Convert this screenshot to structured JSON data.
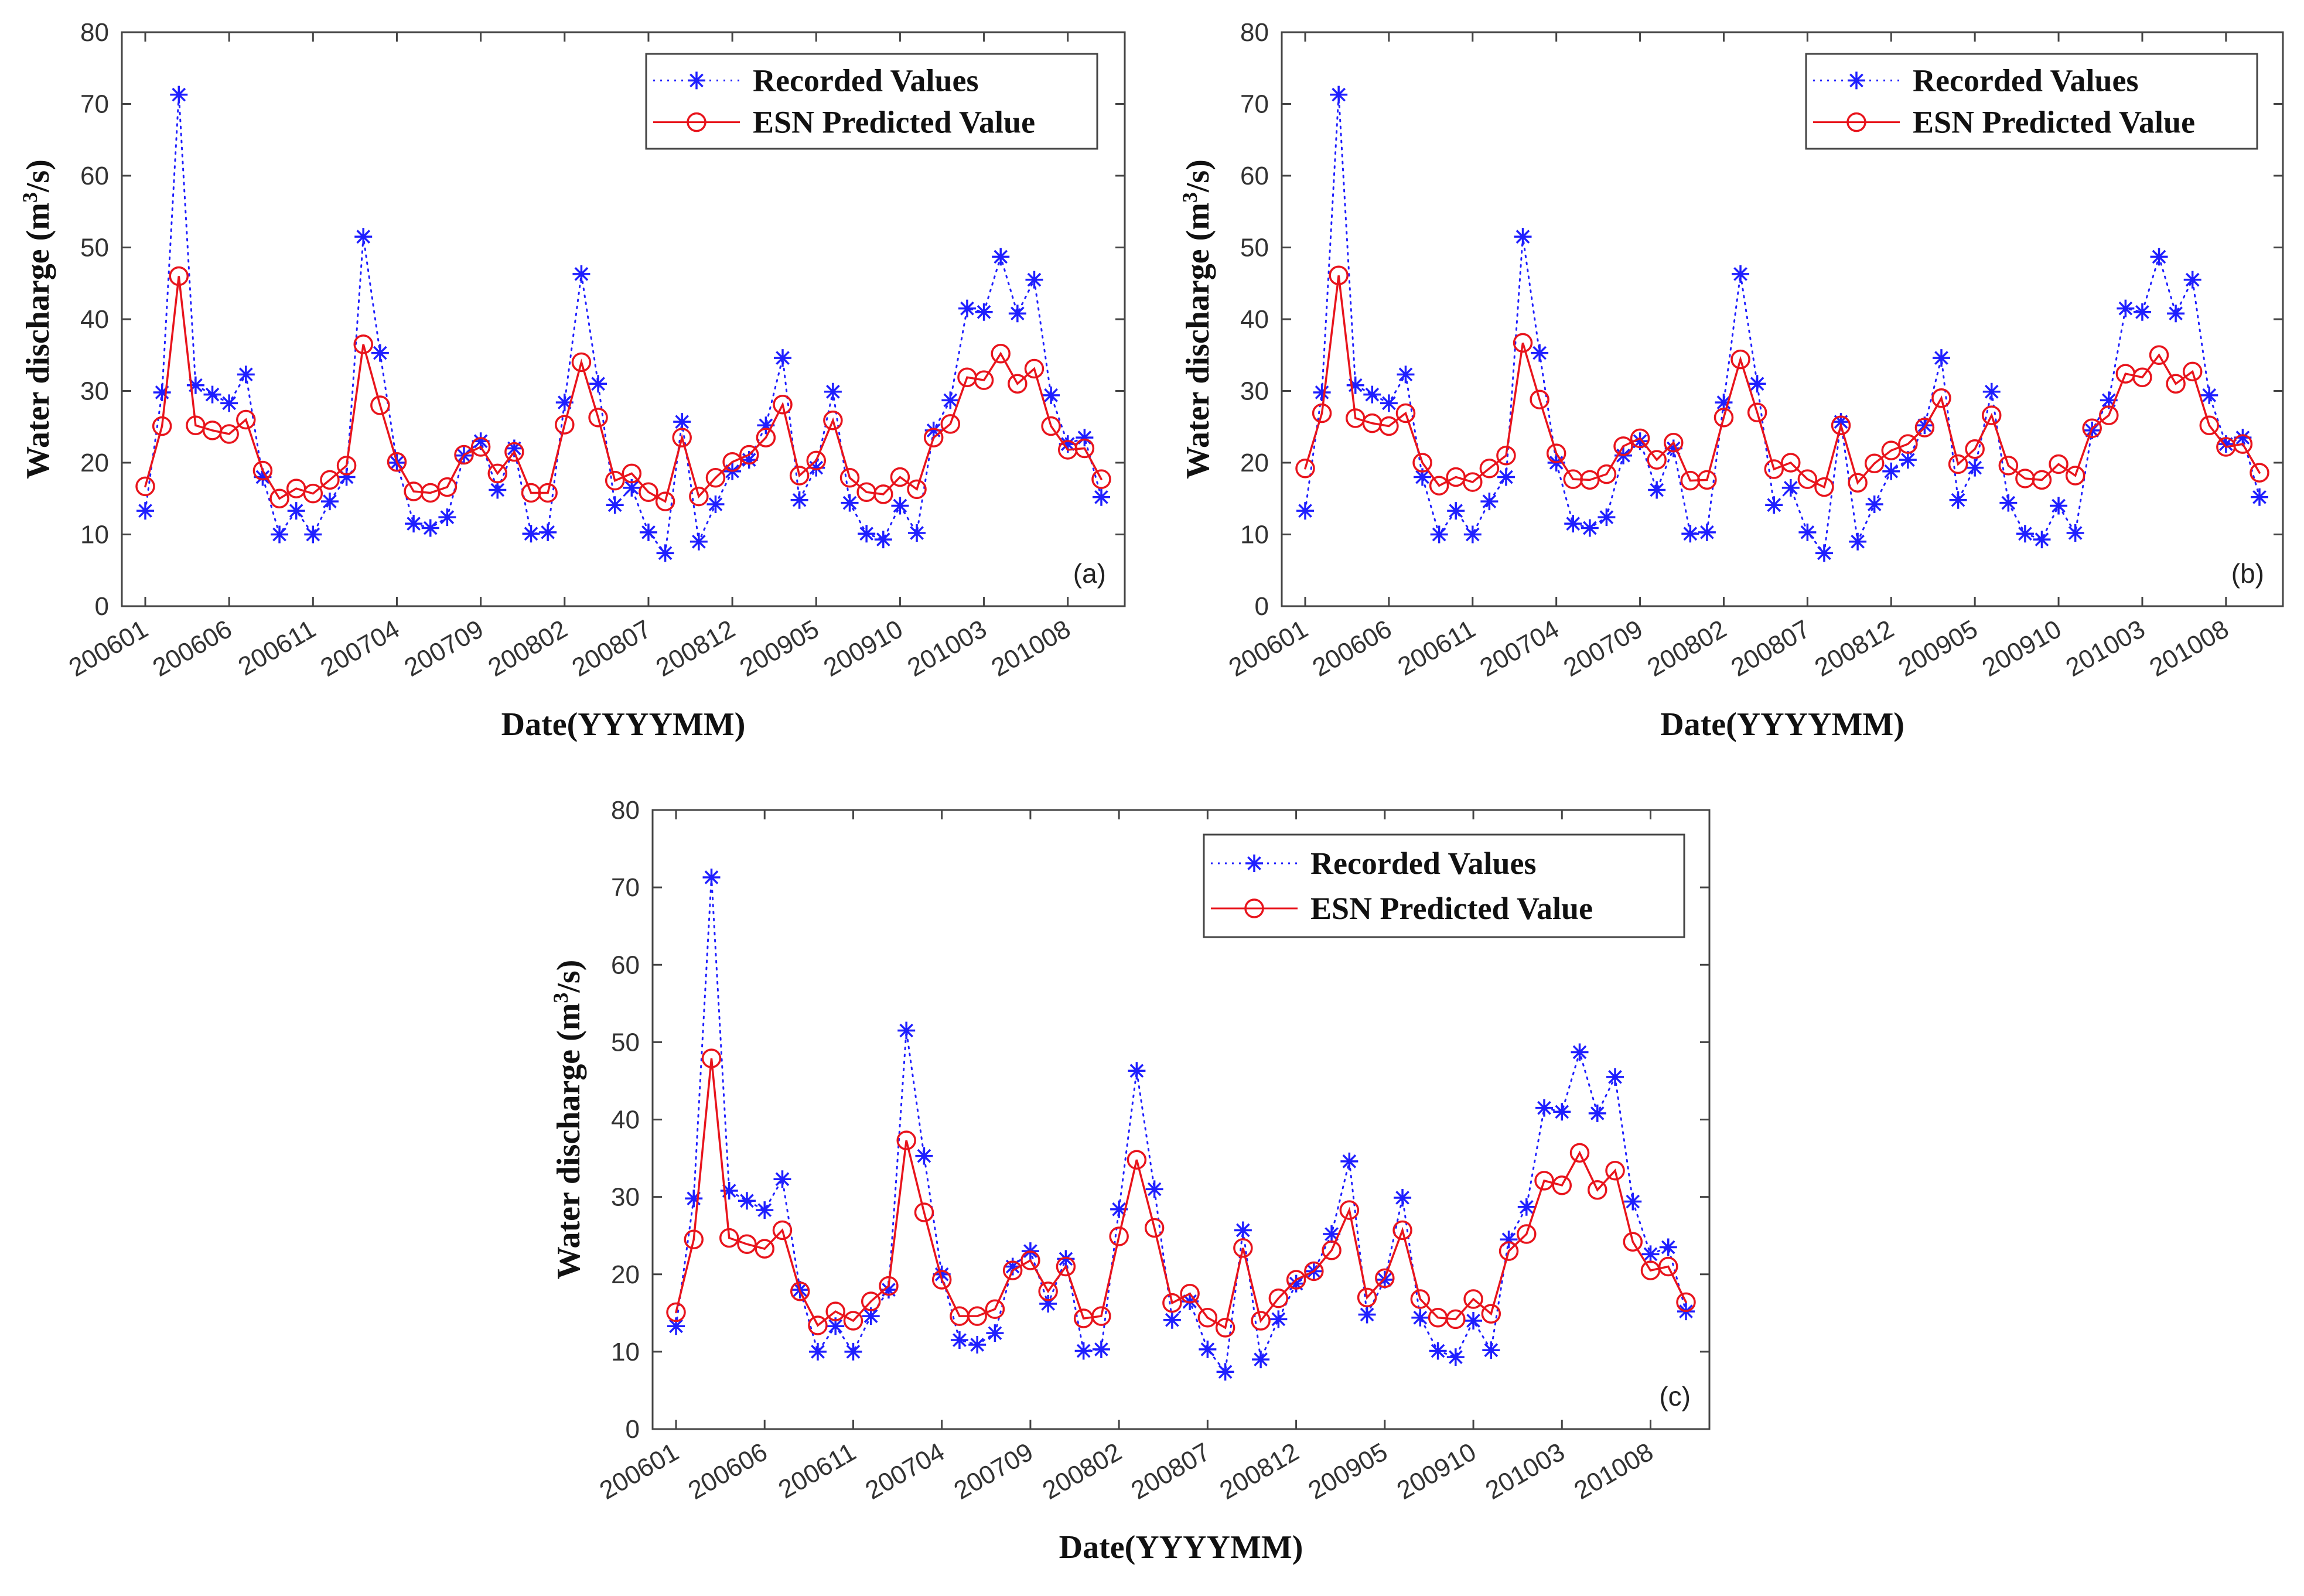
{
  "chart_data": [
    {
      "type": "line",
      "panel_label": "(a)",
      "xlabel": "Date(YYYYMM)",
      "ylabel_main": "Water discharge (m",
      "ylabel_sup": "3",
      "ylabel_end": "/s)",
      "ylim": [
        0,
        80
      ],
      "yticks": [
        "0",
        "10",
        "20",
        "30",
        "40",
        "50",
        "60",
        "70",
        "80"
      ],
      "xticks": [
        "200601",
        "200606",
        "200611",
        "200704",
        "200709",
        "200802",
        "200807",
        "200812",
        "200905",
        "200910",
        "201003",
        "201008"
      ],
      "legend_position": "top-right",
      "series": [
        {
          "name": "Recorded Values",
          "color": "#1f1fff",
          "style": "dotted-star",
          "values": [
            13.3,
            29.8,
            71.3,
            30.8,
            29.5,
            28.3,
            32.3,
            18.0,
            10.0,
            13.3,
            10.0,
            14.6,
            18.0,
            51.5,
            35.3,
            20.0,
            11.5,
            10.9,
            12.4,
            21.0,
            23.0,
            16.2,
            22.0,
            10.1,
            10.3,
            28.4,
            46.3,
            31.0,
            14.1,
            16.5,
            10.3,
            7.4,
            25.7,
            9.0,
            14.2,
            18.8,
            20.4,
            25.2,
            34.6,
            14.8,
            19.3,
            29.9,
            14.4,
            10.1,
            9.3,
            14.0,
            10.2,
            24.5,
            28.7,
            41.5,
            41.0,
            48.7,
            40.8,
            45.5,
            29.4,
            22.6,
            23.5,
            15.2
          ]
        },
        {
          "name": "ESN Predicted Value",
          "color": "#e8141c",
          "style": "solid-circle",
          "values": [
            16.7,
            25.1,
            46.0,
            25.2,
            24.5,
            24.0,
            26.0,
            18.9,
            15.0,
            16.4,
            15.7,
            17.6,
            19.6,
            36.5,
            28.0,
            20.1,
            16.0,
            15.8,
            16.6,
            21.1,
            22.2,
            18.5,
            21.5,
            15.8,
            15.8,
            25.3,
            34.0,
            26.3,
            17.5,
            18.5,
            15.9,
            14.6,
            23.5,
            15.3,
            17.9,
            20.1,
            21.1,
            23.5,
            28.1,
            18.2,
            20.3,
            25.9,
            17.9,
            15.9,
            15.6,
            18.0,
            16.3,
            23.5,
            25.4,
            31.9,
            31.5,
            35.2,
            31.0,
            33.1,
            25.1,
            21.8,
            22.0,
            17.7
          ]
        }
      ]
    },
    {
      "type": "line",
      "panel_label": "(b)",
      "xlabel": "Date(YYYYMM)",
      "ylabel_main": "Water discharge (m",
      "ylabel_sup": "3",
      "ylabel_end": "/s)",
      "ylim": [
        0,
        80
      ],
      "yticks": [
        "0",
        "10",
        "20",
        "30",
        "40",
        "50",
        "60",
        "70",
        "80"
      ],
      "xticks": [
        "200601",
        "200606",
        "200611",
        "200704",
        "200709",
        "200802",
        "200807",
        "200812",
        "200905",
        "200910",
        "201003",
        "201008"
      ],
      "legend_position": "top-right",
      "series": [
        {
          "name": "Recorded Values",
          "color": "#1f1fff",
          "style": "dotted-star",
          "values": [
            13.3,
            29.8,
            71.3,
            30.8,
            29.5,
            28.3,
            32.3,
            18.0,
            10.0,
            13.3,
            10.0,
            14.6,
            18.0,
            51.5,
            35.3,
            20.0,
            11.5,
            10.9,
            12.4,
            21.0,
            23.0,
            16.2,
            22.0,
            10.1,
            10.3,
            28.4,
            46.3,
            31.0,
            14.1,
            16.5,
            10.3,
            7.4,
            25.7,
            9.0,
            14.2,
            18.8,
            20.4,
            25.2,
            34.6,
            14.8,
            19.3,
            29.9,
            14.4,
            10.1,
            9.3,
            14.0,
            10.2,
            24.5,
            28.7,
            41.5,
            41.0,
            48.7,
            40.8,
            45.5,
            29.4,
            22.6,
            23.5,
            15.2
          ]
        },
        {
          "name": "ESN Predicted Value",
          "color": "#e8141c",
          "style": "solid-circle",
          "values": [
            19.2,
            26.9,
            46.1,
            26.2,
            25.5,
            25.1,
            26.9,
            20.0,
            16.8,
            18.0,
            17.3,
            19.2,
            21.0,
            36.7,
            28.8,
            21.3,
            17.7,
            17.6,
            18.4,
            22.3,
            23.4,
            20.4,
            22.8,
            17.5,
            17.6,
            26.3,
            34.4,
            27.0,
            19.1,
            20.0,
            17.7,
            16.6,
            25.2,
            17.2,
            19.9,
            21.7,
            22.6,
            24.9,
            29.0,
            19.8,
            21.9,
            26.6,
            19.6,
            17.8,
            17.6,
            19.8,
            18.2,
            24.8,
            26.6,
            32.4,
            31.9,
            35.0,
            31.0,
            32.7,
            25.2,
            22.2,
            22.6,
            18.6
          ]
        }
      ]
    },
    {
      "type": "line",
      "panel_label": "(c)",
      "xlabel": "Date(YYYYMM)",
      "ylabel_main": "Water discharge (m",
      "ylabel_sup": "3",
      "ylabel_end": "/s)",
      "ylim": [
        0,
        80
      ],
      "yticks": [
        "0",
        "10",
        "20",
        "30",
        "40",
        "50",
        "60",
        "70",
        "80"
      ],
      "xticks": [
        "200601",
        "200606",
        "200611",
        "200704",
        "200709",
        "200802",
        "200807",
        "200812",
        "200905",
        "200910",
        "201003",
        "201008"
      ],
      "legend_position": "top-right",
      "series": [
        {
          "name": "Recorded Values",
          "color": "#1f1fff",
          "style": "dotted-star",
          "values": [
            13.3,
            29.8,
            71.3,
            30.8,
            29.5,
            28.3,
            32.3,
            18.0,
            10.0,
            13.3,
            10.0,
            14.6,
            18.0,
            51.5,
            35.3,
            20.0,
            11.5,
            10.9,
            12.4,
            21.0,
            23.0,
            16.2,
            22.0,
            10.1,
            10.3,
            28.4,
            46.3,
            31.0,
            14.1,
            16.5,
            10.3,
            7.4,
            25.7,
            9.0,
            14.2,
            18.8,
            20.4,
            25.2,
            34.6,
            14.8,
            19.3,
            29.9,
            14.4,
            10.1,
            9.3,
            14.0,
            10.2,
            24.5,
            28.7,
            41.5,
            41.0,
            48.7,
            40.8,
            45.5,
            29.4,
            22.6,
            23.5,
            15.2
          ]
        },
        {
          "name": "ESN Predicted Value",
          "color": "#e8141c",
          "style": "solid-circle",
          "values": [
            15.1,
            24.5,
            47.9,
            24.7,
            23.9,
            23.3,
            25.7,
            17.8,
            13.4,
            15.2,
            14.0,
            16.5,
            18.5,
            37.3,
            28.0,
            19.3,
            14.6,
            14.6,
            15.5,
            20.5,
            21.8,
            17.8,
            21.0,
            14.3,
            14.6,
            24.9,
            34.8,
            26.0,
            16.3,
            17.5,
            14.4,
            13.1,
            23.4,
            14.0,
            16.9,
            19.3,
            20.4,
            23.1,
            28.3,
            17.0,
            19.5,
            25.7,
            16.8,
            14.4,
            14.2,
            16.8,
            14.9,
            23.0,
            25.2,
            32.1,
            31.5,
            35.7,
            30.9,
            33.4,
            24.2,
            20.5,
            21.0,
            16.4
          ]
        }
      ]
    }
  ]
}
